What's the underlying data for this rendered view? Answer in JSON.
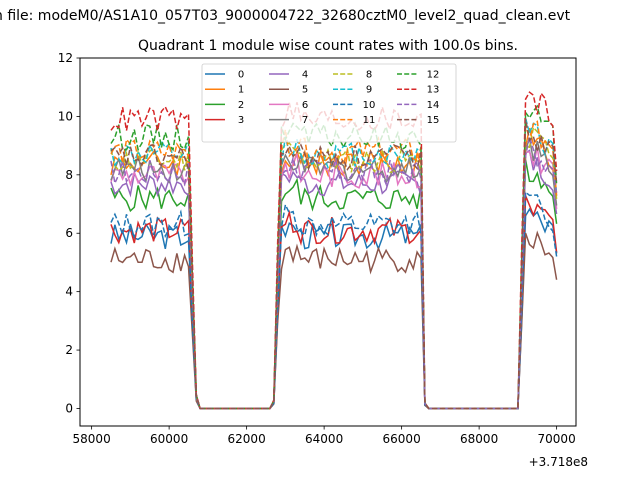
{
  "chart_data": {
    "type": "line",
    "suptitle": "n file: modeM0/AS1A10_057T03_9000004722_32680cztM0_level2_quad_clean.evt",
    "title": "Quadrant 1 module wise count rates with 100.0s bins.",
    "xlabel": "",
    "ylabel": "",
    "x_offset_label": "+3.718e8",
    "xlim": [
      57700,
      70500
    ],
    "ylim": [
      -0.6,
      12.0
    ],
    "xticks": [
      58000,
      60000,
      62000,
      64000,
      66000,
      68000,
      70000
    ],
    "yticks": [
      0,
      2,
      4,
      6,
      8,
      10,
      12
    ],
    "legend_placement": "upper-center, 4 columns",
    "x_range": {
      "start": 58500,
      "end": 70000,
      "step": 100
    },
    "on_segments": [
      [
        58500,
        60500
      ],
      [
        62900,
        66500
      ],
      [
        69200,
        70000
      ]
    ],
    "series": [
      {
        "name": "0",
        "color": "#1f77b4",
        "style": "solid",
        "level": 5.9
      },
      {
        "name": "1",
        "color": "#ff7f0e",
        "style": "solid",
        "level": 8.4
      },
      {
        "name": "2",
        "color": "#2ca02c",
        "style": "solid",
        "level": 7.2
      },
      {
        "name": "3",
        "color": "#d62728",
        "style": "solid",
        "level": 6.1
      },
      {
        "name": "4",
        "color": "#9467bd",
        "style": "solid",
        "level": 7.7
      },
      {
        "name": "5",
        "color": "#8c564b",
        "style": "solid",
        "level": 5.1
      },
      {
        "name": "6",
        "color": "#e377c2",
        "style": "solid",
        "level": 8.0
      },
      {
        "name": "7",
        "color": "#7f7f7f",
        "style": "solid",
        "level": 8.2
      },
      {
        "name": "8",
        "color": "#bcbd22",
        "style": "dashed",
        "level": 8.5
      },
      {
        "name": "9",
        "color": "#17becf",
        "style": "dashed",
        "level": 8.7
      },
      {
        "name": "10",
        "color": "#1f77b4",
        "style": "dashed",
        "level": 6.3
      },
      {
        "name": "11",
        "color": "#ff7f0e",
        "style": "dashed",
        "level": 8.8
      },
      {
        "name": "12",
        "color": "#2ca02c",
        "style": "dashed",
        "level": 9.3
      },
      {
        "name": "13",
        "color": "#d62728",
        "style": "dashed",
        "level": 9.9
      },
      {
        "name": "14",
        "color": "#9467bd",
        "style": "dashed",
        "level": 8.1
      },
      {
        "name": "15",
        "color": "#8c564b",
        "style": "dashed",
        "level": 8.6
      }
    ]
  }
}
